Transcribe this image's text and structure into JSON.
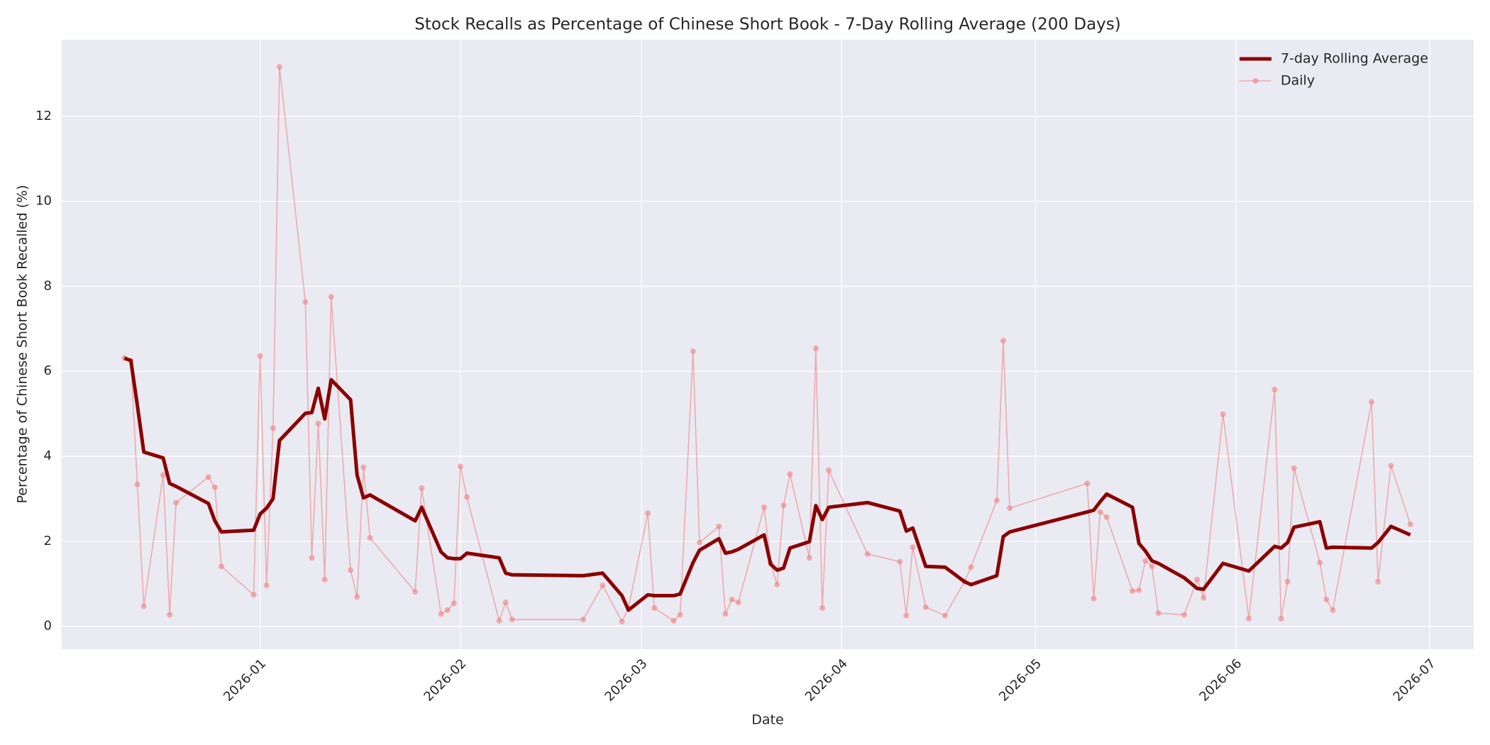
{
  "chart_data": {
    "type": "line",
    "title": "Stock Recalls as Percentage of Chinese Short Book - 7-Day Rolling Average (200 Days)",
    "x_label": "Date",
    "y_label": "Percentage of Chinese Short Book Recalled (%)",
    "x": [
      20433,
      20434,
      20435,
      20436,
      20439,
      20440,
      20441,
      20446,
      20447,
      20448,
      20453,
      20454,
      20455,
      20456,
      20457,
      20461,
      20462,
      20463,
      20464,
      20465,
      20468,
      20469,
      20470,
      20471,
      20478,
      20479,
      20482,
      20483,
      20484,
      20485,
      20486,
      20491,
      20492,
      20493,
      20504,
      20507,
      20510,
      20511,
      20514,
      20515,
      20518,
      20519,
      20521,
      20522,
      20525,
      20526,
      20527,
      20528,
      20532,
      20533,
      20534,
      20535,
      20536,
      20539,
      20540,
      20541,
      20542,
      20548,
      20553,
      20554,
      20555,
      20557,
      20560,
      20563,
      20564,
      20568,
      20569,
      20570,
      20582,
      20583,
      20584,
      20585,
      20589,
      20590,
      20591,
      20592,
      20593,
      20597,
      20599,
      20600,
      20603,
      20607,
      20611,
      20612,
      20613,
      20614,
      20618,
      20619,
      20620,
      20626,
      20627,
      20629,
      20632
    ],
    "series": [
      {
        "name": "7-day Rolling Average",
        "color": "#8b0000",
        "values": [
          6.31,
          6.25,
          5.2,
          4.1,
          3.96,
          3.36,
          3.29,
          2.89,
          2.48,
          2.22,
          2.26,
          2.64,
          2.78,
          3.0,
          4.37,
          5.01,
          5.03,
          5.6,
          4.88,
          5.8,
          5.33,
          3.56,
          3.02,
          3.09,
          2.48,
          2.8,
          1.75,
          1.61,
          1.59,
          1.59,
          1.72,
          1.61,
          1.25,
          1.21,
          1.19,
          1.25,
          0.72,
          0.38,
          0.74,
          0.72,
          0.72,
          0.76,
          1.5,
          1.79,
          2.06,
          1.72,
          1.75,
          1.81,
          2.15,
          1.46,
          1.32,
          1.37,
          1.84,
          1.99,
          2.84,
          2.51,
          2.8,
          2.91,
          2.71,
          2.24,
          2.31,
          1.41,
          1.39,
          1.05,
          0.98,
          1.19,
          2.11,
          2.22,
          2.69,
          2.73,
          2.93,
          3.11,
          2.8,
          1.95,
          1.77,
          1.54,
          1.48,
          1.14,
          0.89,
          0.87,
          1.48,
          1.3,
          1.88,
          1.84,
          1.97,
          2.33,
          2.46,
          1.84,
          1.86,
          1.84,
          1.97,
          2.35,
          2.15
        ]
      },
      {
        "name": "Daily",
        "color": "#f08080",
        "marker": "o",
        "values": [
          6.31,
          6.25,
          3.34,
          0.47,
          3.56,
          0.27,
          2.91,
          3.51,
          3.27,
          1.41,
          0.74,
          6.36,
          0.96,
          4.66,
          13.16,
          7.63,
          1.61,
          4.77,
          1.1,
          7.75,
          1.32,
          0.69,
          3.74,
          2.08,
          0.81,
          3.25,
          0.29,
          0.38,
          0.54,
          3.76,
          3.04,
          0.13,
          0.56,
          0.16,
          0.16,
          0.96,
          0.11,
          0.43,
          2.66,
          0.43,
          0.13,
          0.27,
          6.47,
          1.97,
          2.35,
          0.29,
          0.63,
          0.56,
          2.8,
          1.48,
          0.98,
          2.84,
          3.58,
          1.61,
          6.54,
          0.43,
          3.67,
          1.7,
          1.52,
          0.25,
          1.86,
          0.45,
          0.25,
          1.05,
          1.39,
          2.96,
          6.72,
          2.78,
          3.36,
          0.65,
          2.69,
          2.57,
          0.83,
          0.85,
          1.54,
          1.41,
          0.31,
          0.27,
          1.1,
          0.67,
          4.99,
          0.18,
          5.57,
          0.18,
          1.05,
          3.72,
          1.5,
          0.63,
          0.38,
          5.28,
          1.05,
          3.78,
          2.4
        ]
      }
    ],
    "xlim": [
      20423.3,
      20641.8
    ],
    "ylim": [
      -0.54,
      13.8
    ],
    "xticks": [
      {
        "value": 20454,
        "label": "2026-01"
      },
      {
        "value": 20485,
        "label": "2026-02"
      },
      {
        "value": 20513,
        "label": "2026-03"
      },
      {
        "value": 20544,
        "label": "2026-04"
      },
      {
        "value": 20574,
        "label": "2026-05"
      },
      {
        "value": 20605,
        "label": "2026-06"
      },
      {
        "value": 20635,
        "label": "2026-07"
      }
    ],
    "yticks": [
      0,
      2,
      4,
      6,
      8,
      10,
      12
    ],
    "grid": true,
    "legend": "upper right"
  }
}
